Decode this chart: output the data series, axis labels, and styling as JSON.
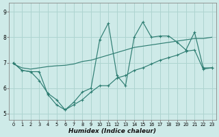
{
  "xlabel": "Humidex (Indice chaleur)",
  "xlim": [
    -0.5,
    23.5
  ],
  "ylim": [
    4.75,
    9.35
  ],
  "yticks": [
    5,
    6,
    7,
    8,
    9
  ],
  "xticks": [
    0,
    1,
    2,
    3,
    4,
    5,
    6,
    7,
    8,
    9,
    10,
    11,
    12,
    13,
    14,
    15,
    16,
    17,
    18,
    19,
    20,
    21,
    22,
    23
  ],
  "bg_color": "#ceeae8",
  "grid_color": "#aed4d0",
  "line_color": "#2e7d72",
  "line1_y": [
    7.0,
    6.7,
    6.65,
    6.65,
    5.75,
    5.35,
    5.15,
    5.45,
    5.85,
    6.0,
    7.9,
    8.55,
    6.5,
    6.1,
    8.0,
    8.6,
    8.0,
    8.05,
    8.05,
    7.8,
    7.5,
    8.2,
    6.8,
    6.8
  ],
  "line2_y": [
    6.95,
    6.8,
    6.75,
    6.8,
    6.85,
    6.88,
    6.9,
    6.95,
    7.05,
    7.1,
    7.2,
    7.3,
    7.4,
    7.5,
    7.6,
    7.65,
    7.7,
    7.75,
    7.8,
    7.85,
    7.9,
    7.95,
    7.95,
    8.0
  ],
  "line3_y": [
    7.0,
    6.7,
    6.65,
    6.3,
    5.8,
    5.55,
    5.15,
    5.35,
    5.55,
    5.85,
    6.1,
    6.1,
    6.4,
    6.5,
    6.7,
    6.8,
    6.95,
    7.1,
    7.2,
    7.3,
    7.45,
    7.5,
    6.75,
    6.8
  ]
}
